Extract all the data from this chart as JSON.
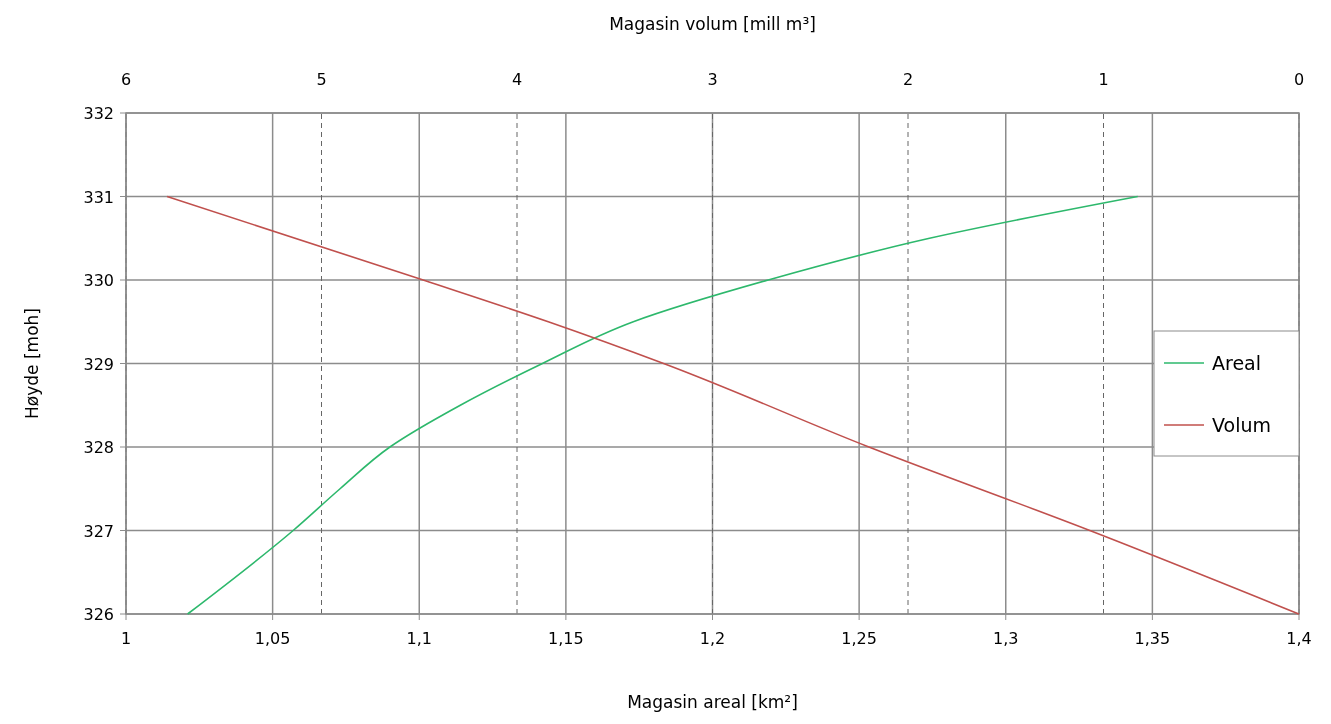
{
  "chart_data": {
    "type": "line",
    "xlabel": "Magasin areal [km²]",
    "x2label": "Magasin volum [mill m³]",
    "ylabel": "Høyde [moh]",
    "xlim": [
      1,
      1.4
    ],
    "xticks": [
      1,
      {
        "value": 1.05,
        "label": "1,05"
      },
      {
        "value": 1.1,
        "label": "1,1"
      },
      {
        "value": 1.15,
        "label": "1,15"
      },
      {
        "value": 1.2,
        "label": "1,2"
      },
      {
        "value": 1.25,
        "label": "1,25"
      },
      {
        "value": 1.3,
        "label": "1,3"
      },
      {
        "value": 1.35,
        "label": "1,35"
      },
      {
        "value": 1.4,
        "label": "1,4"
      }
    ],
    "x2lim": [
      6,
      0
    ],
    "x2ticks": [
      6,
      5,
      4,
      3,
      2,
      1,
      0
    ],
    "ylim": [
      326,
      332
    ],
    "yticks": [
      326,
      327,
      328,
      329,
      330,
      331,
      332
    ],
    "grid": true,
    "legend": "right",
    "marker": "none",
    "line_style": "solid",
    "series": [
      {
        "name": "Areal",
        "color": "#2db86c",
        "x": [
          1.021,
          1.057,
          1.073,
          1.09,
          1.114,
          1.142,
          1.173,
          1.219,
          1.274,
          1.345
        ],
        "values": [
          326,
          327,
          327.5,
          328,
          328.5,
          329,
          329.5,
          330,
          330.5,
          331
        ]
      },
      {
        "name": "Volum",
        "color": "#c0504d",
        "axis": "x2",
        "x": [
          5.79,
          4.48,
          3.84,
          3.25,
          2.2,
          1.07,
          0
        ],
        "values": [
          331,
          330,
          329.5,
          329,
          328,
          327,
          326
        ]
      }
    ]
  }
}
